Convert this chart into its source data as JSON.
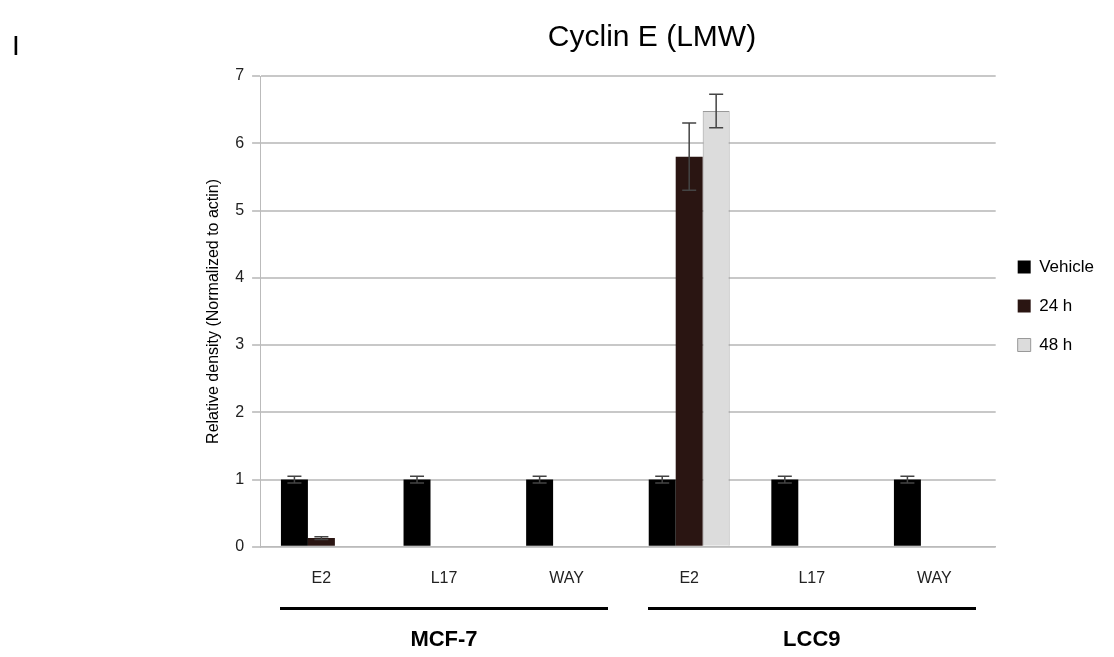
{
  "chart_data": {
    "type": "bar",
    "title": "Cyclin E (LMW)",
    "ylabel": "Relative density (Normalized to actin)",
    "categories": [
      "E2",
      "L17",
      "WAY",
      "E2",
      "L17",
      "WAY"
    ],
    "series": [
      {
        "name": "Vehicle",
        "color": "#000000",
        "values": [
          1,
          1,
          1,
          1,
          1,
          1
        ],
        "errors": [
          0.05,
          0.05,
          0.05,
          0.05,
          0.05,
          0.05
        ]
      },
      {
        "name": "24 h",
        "color": "#2a1512",
        "values": [
          0.13,
          0,
          0,
          5.8,
          0,
          0
        ],
        "errors": [
          0.02,
          null,
          null,
          0.5,
          null,
          null
        ]
      },
      {
        "name": "48 h",
        "color": "#dcdcdc",
        "values": [
          0,
          0,
          0,
          6.48,
          0,
          0
        ],
        "errors": [
          null,
          null,
          null,
          0.25,
          null,
          null
        ]
      }
    ],
    "ylim": [
      0,
      7
    ],
    "yticks": [
      0,
      1,
      2,
      3,
      4,
      5,
      6,
      7
    ],
    "grid": "y",
    "legend": "right",
    "annotations": [
      "I",
      "MCF-7",
      "LCC9"
    ]
  }
}
